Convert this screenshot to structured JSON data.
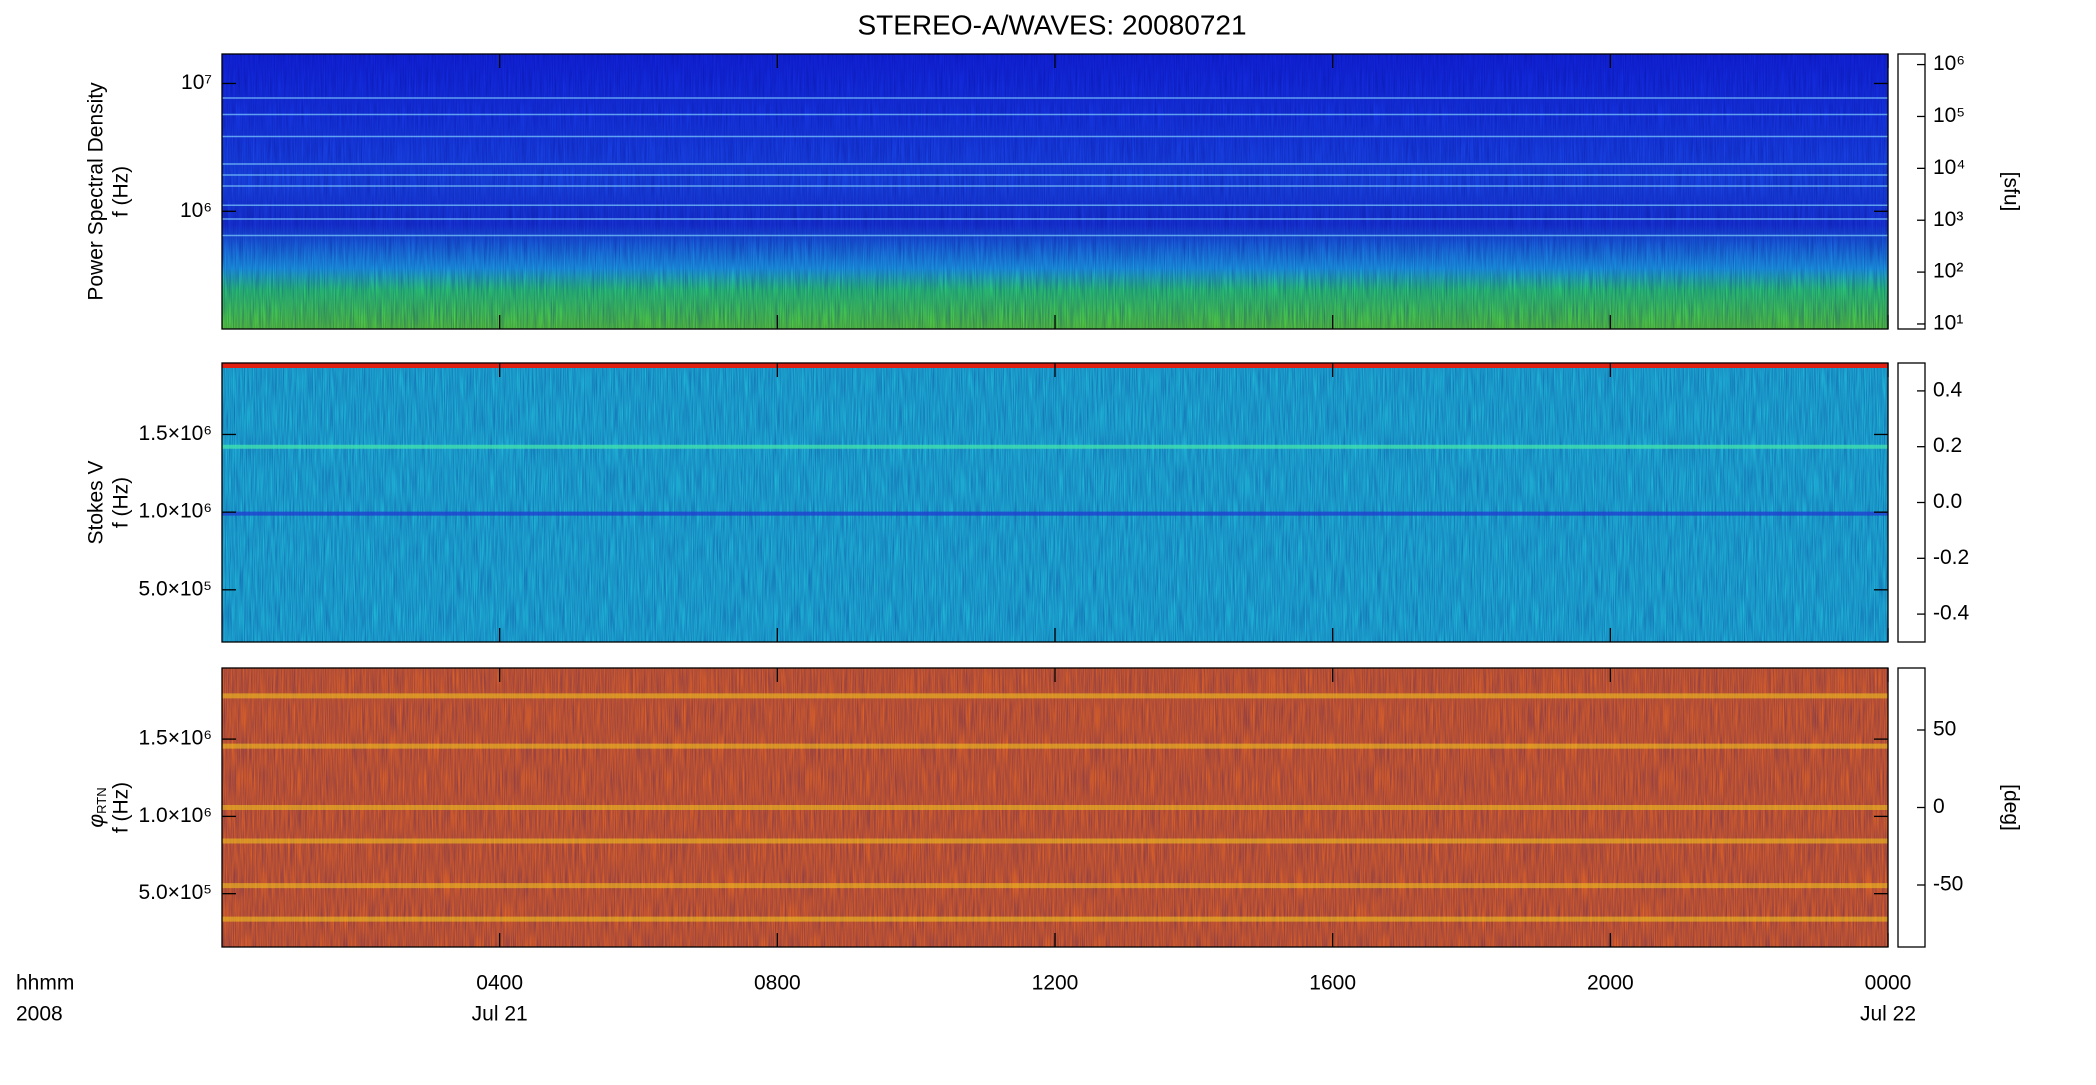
{
  "title": "STEREO-A/WAVES: 20080721",
  "chart_data": [
    {
      "type": "spectrogram",
      "ylabel": [
        "Power Spectral Density",
        "f (Hz)"
      ],
      "yscale": "log",
      "ylim": [
        120000,
        17000000
      ],
      "yticks": [
        {
          "value": 1000000,
          "label": "10⁶"
        },
        {
          "value": 10000000,
          "label": "10⁷"
        }
      ],
      "colorbar": {
        "scale": "log",
        "lim": [
          8,
          1600000
        ],
        "ticks": [
          {
            "value": 10,
            "label": "10¹"
          },
          {
            "value": 100,
            "label": "10²"
          },
          {
            "value": 1000,
            "label": "10³"
          },
          {
            "value": 10000,
            "label": "10⁴"
          },
          {
            "value": 100000,
            "label": "10⁵"
          },
          {
            "value": 1000000,
            "label": "10⁶"
          }
        ],
        "label": "[sfu]"
      }
    },
    {
      "type": "spectrogram",
      "ylabel": [
        "Stokes V",
        "f (Hz)"
      ],
      "yscale": "linear",
      "ylim": [
        164000,
        1960000
      ],
      "yticks": [
        {
          "value": 500000,
          "label": "5.0×10⁵"
        },
        {
          "value": 1000000,
          "label": "1.0×10⁶"
        },
        {
          "value": 1500000,
          "label": "1.5×10⁶"
        }
      ],
      "colorbar": {
        "scale": "linear",
        "lim": [
          -0.5,
          0.5
        ],
        "ticks": [
          -0.4,
          -0.2,
          {
            "value": 0,
            "label": "0.0"
          },
          0.2,
          0.4
        ]
      }
    },
    {
      "type": "spectrogram",
      "ylabel_symbol": "φ",
      "ylabel_sub": "RTN",
      "ylabel": [
        "f (Hz)"
      ],
      "yscale": "linear",
      "ylim": [
        155000,
        1960000
      ],
      "yticks": [
        {
          "value": 500000,
          "label": "5.0×10⁵"
        },
        {
          "value": 1000000,
          "label": "1.0×10⁶"
        },
        {
          "value": 1500000,
          "label": "1.5×10⁶"
        }
      ],
      "colorbar": {
        "scale": "linear",
        "lim": [
          -90,
          90
        ],
        "ticks": [
          -50,
          0,
          50
        ],
        "label": "[deg]"
      },
      "xlim": [
        0,
        24
      ],
      "xlabel": "hhmm",
      "year_label": "2008",
      "xticks": [
        {
          "value": 4,
          "label": "0400"
        },
        {
          "value": 8,
          "label": "0800"
        },
        {
          "value": 12,
          "label": "1200"
        },
        {
          "value": 16,
          "label": "1600"
        },
        {
          "value": 20,
          "label": "2000"
        },
        {
          "value": 24,
          "label": "0000"
        }
      ],
      "xtick_dates": [
        {
          "value": 4,
          "label": "Jul 21"
        },
        {
          "value": 24,
          "label": "Jul 22"
        }
      ]
    }
  ]
}
